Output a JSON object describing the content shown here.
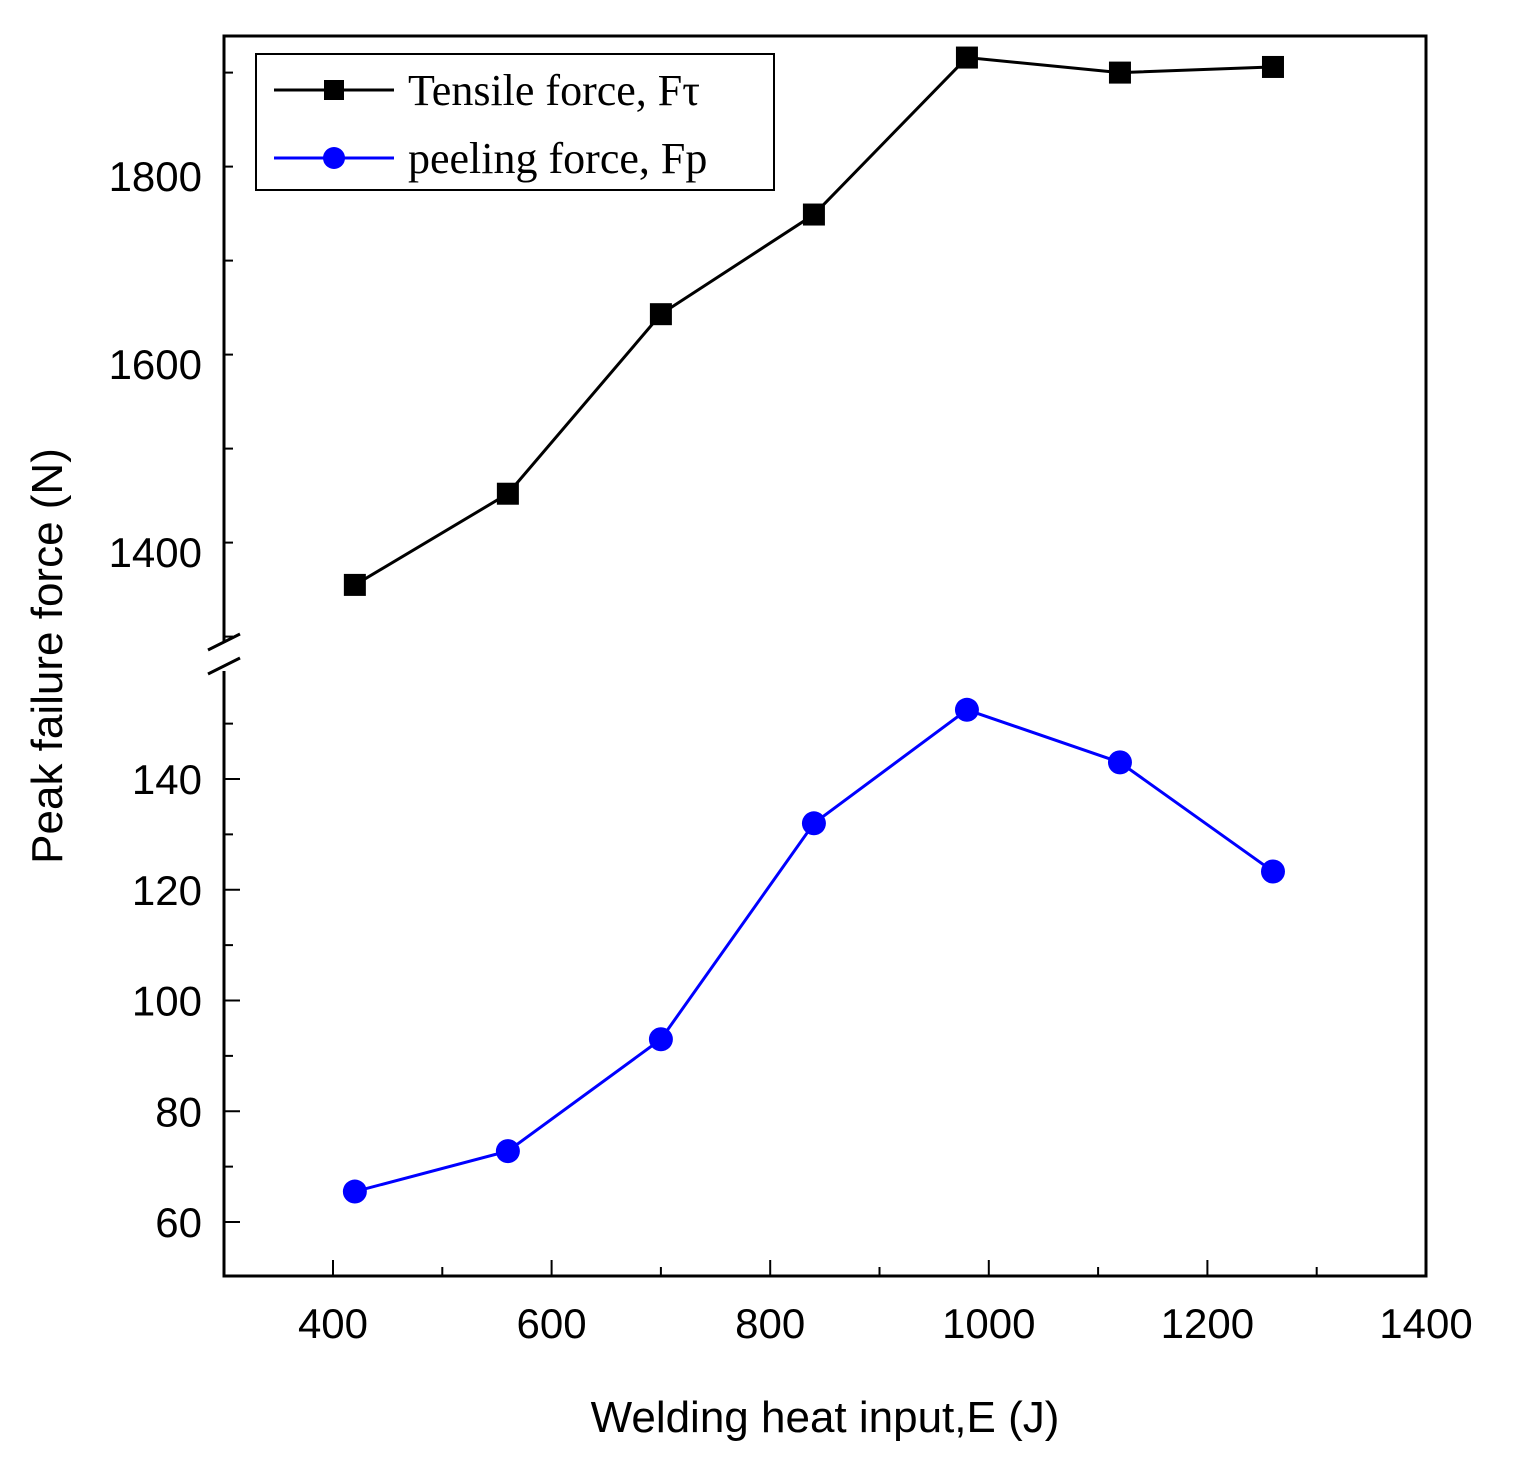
{
  "chart_data": {
    "type": "line",
    "title": "",
    "xlabel": "Welding heat input,E (J)",
    "ylabel": "Peak failure force (N)",
    "xlim": [
      300,
      1400
    ],
    "x_ticks": [
      400,
      600,
      800,
      1000,
      1200,
      1400
    ],
    "broken_y_axis": true,
    "y_segments": [
      {
        "name": "upper",
        "range": [
          1310,
          1930
        ],
        "ticks": [
          1400,
          1600,
          1800
        ]
      },
      {
        "name": "lower",
        "range": [
          50,
          155
        ],
        "ticks": [
          60,
          80,
          100,
          120,
          140
        ]
      }
    ],
    "legend_position": "top-left",
    "series": [
      {
        "name": "Tensile force, Fτ",
        "color": "#000000",
        "marker": "square",
        "segment": "upper",
        "x": [
          420,
          560,
          700,
          840,
          980,
          1120,
          1260
        ],
        "values": [
          1365,
          1462,
          1653,
          1759,
          1926,
          1910,
          1916
        ]
      },
      {
        "name": "peeling force, Fp",
        "color": "#0000ff",
        "marker": "circle",
        "segment": "lower",
        "x": [
          420,
          560,
          700,
          840,
          980,
          1120,
          1260
        ],
        "values": [
          65.5,
          72.8,
          93,
          132,
          152.5,
          143,
          123.3
        ]
      }
    ]
  }
}
